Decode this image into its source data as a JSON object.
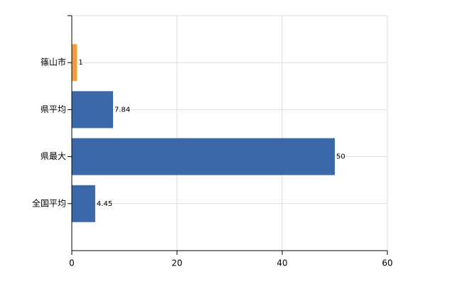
{
  "chart_data": {
    "type": "bar",
    "orientation": "horizontal",
    "categories": [
      "篠山市",
      "県平均",
      "県最大",
      "全国平均"
    ],
    "values": [
      1,
      7.84,
      50,
      4.45
    ],
    "colors": [
      "#f39c38",
      "#3a68a8",
      "#3a68a8",
      "#3a68a8"
    ],
    "xlim": [
      0,
      60
    ],
    "xticks": [
      0,
      20,
      40,
      60
    ],
    "grid": true
  }
}
